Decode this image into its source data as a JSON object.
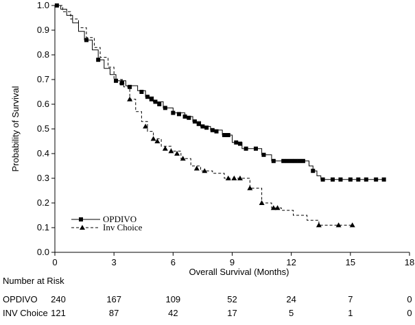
{
  "chart_data": {
    "type": "line",
    "subtype": "kaplan-meier",
    "title": "",
    "xlabel": "Overall Survival (Months)",
    "ylabel": "Probability of Survival",
    "xlim": [
      0,
      18
    ],
    "ylim": [
      0.0,
      1.0
    ],
    "x_ticks": [
      0,
      3,
      6,
      9,
      12,
      15,
      18
    ],
    "y_ticks": [
      0.0,
      0.1,
      0.2,
      0.3,
      0.4,
      0.5,
      0.6,
      0.7,
      0.8,
      0.9,
      1.0
    ],
    "x_tick_labels": [
      "0",
      "3",
      "6",
      "9",
      "12",
      "15",
      "18"
    ],
    "y_tick_labels": [
      "0.0",
      "0.1",
      "0.2",
      "0.3",
      "0.4",
      "0.5",
      "0.6",
      "0.7",
      "0.8",
      "0.9",
      "1.0"
    ],
    "grid": false,
    "legend_position": "bottom-left",
    "series": [
      {
        "name": "OPDIVO",
        "style": "solid",
        "marker": "square",
        "color": "#000000",
        "steps": [
          [
            0,
            1.0
          ],
          [
            0.3,
            0.985
          ],
          [
            0.6,
            0.96
          ],
          [
            0.9,
            0.93
          ],
          [
            1.2,
            0.895
          ],
          [
            1.5,
            0.86
          ],
          [
            1.9,
            0.82
          ],
          [
            2.2,
            0.78
          ],
          [
            2.5,
            0.745
          ],
          [
            2.8,
            0.72
          ],
          [
            3.1,
            0.695
          ],
          [
            3.6,
            0.675
          ],
          [
            4.2,
            0.655
          ],
          [
            4.6,
            0.63
          ],
          [
            5.0,
            0.61
          ],
          [
            5.5,
            0.585
          ],
          [
            6.0,
            0.565
          ],
          [
            6.6,
            0.55
          ],
          [
            7.0,
            0.53
          ],
          [
            7.4,
            0.51
          ],
          [
            7.9,
            0.495
          ],
          [
            8.5,
            0.475
          ],
          [
            9.0,
            0.445
          ],
          [
            9.5,
            0.42
          ],
          [
            10.5,
            0.395
          ],
          [
            11.0,
            0.37
          ],
          [
            12.9,
            0.35
          ],
          [
            13.1,
            0.33
          ],
          [
            13.3,
            0.31
          ],
          [
            13.5,
            0.295
          ],
          [
            16.7,
            0.295
          ]
        ],
        "censored": [
          [
            0.1,
            1.0
          ],
          [
            1.6,
            0.86
          ],
          [
            2.2,
            0.78
          ],
          [
            3.1,
            0.695
          ],
          [
            3.4,
            0.685
          ],
          [
            3.8,
            0.67
          ],
          [
            4.4,
            0.65
          ],
          [
            4.7,
            0.63
          ],
          [
            4.9,
            0.62
          ],
          [
            5.1,
            0.61
          ],
          [
            5.3,
            0.6
          ],
          [
            5.6,
            0.585
          ],
          [
            6.0,
            0.565
          ],
          [
            6.3,
            0.56
          ],
          [
            6.6,
            0.55
          ],
          [
            6.8,
            0.545
          ],
          [
            7.1,
            0.53
          ],
          [
            7.3,
            0.52
          ],
          [
            7.5,
            0.51
          ],
          [
            7.7,
            0.505
          ],
          [
            8.0,
            0.495
          ],
          [
            8.2,
            0.49
          ],
          [
            8.6,
            0.475
          ],
          [
            8.8,
            0.475
          ],
          [
            9.2,
            0.445
          ],
          [
            9.4,
            0.44
          ],
          [
            9.7,
            0.42
          ],
          [
            10.2,
            0.42
          ],
          [
            10.6,
            0.395
          ],
          [
            11.1,
            0.37
          ],
          [
            11.6,
            0.37
          ],
          [
            11.8,
            0.37
          ],
          [
            12.0,
            0.37
          ],
          [
            12.2,
            0.37
          ],
          [
            12.4,
            0.37
          ],
          [
            12.6,
            0.37
          ],
          [
            13.1,
            0.33
          ],
          [
            13.6,
            0.295
          ],
          [
            14.1,
            0.295
          ],
          [
            14.5,
            0.295
          ],
          [
            15.0,
            0.295
          ],
          [
            15.4,
            0.295
          ],
          [
            15.8,
            0.295
          ],
          [
            16.3,
            0.295
          ],
          [
            16.7,
            0.295
          ]
        ]
      },
      {
        "name": "Inv Choice",
        "style": "dashed",
        "marker": "triangle",
        "color": "#000000",
        "steps": [
          [
            0,
            1.0
          ],
          [
            0.4,
            0.975
          ],
          [
            0.8,
            0.945
          ],
          [
            1.2,
            0.91
          ],
          [
            1.6,
            0.87
          ],
          [
            2.0,
            0.83
          ],
          [
            2.3,
            0.79
          ],
          [
            2.7,
            0.75
          ],
          [
            3.0,
            0.7
          ],
          [
            3.5,
            0.67
          ],
          [
            3.8,
            0.62
          ],
          [
            4.1,
            0.57
          ],
          [
            4.4,
            0.53
          ],
          [
            4.7,
            0.49
          ],
          [
            5.0,
            0.46
          ],
          [
            5.4,
            0.43
          ],
          [
            5.9,
            0.41
          ],
          [
            6.4,
            0.38
          ],
          [
            6.9,
            0.35
          ],
          [
            7.4,
            0.33
          ],
          [
            8.0,
            0.32
          ],
          [
            8.6,
            0.3
          ],
          [
            9.9,
            0.26
          ],
          [
            10.5,
            0.2
          ],
          [
            11.0,
            0.18
          ],
          [
            11.5,
            0.17
          ],
          [
            12.1,
            0.15
          ],
          [
            12.8,
            0.13
          ],
          [
            13.4,
            0.11
          ],
          [
            15.1,
            0.11
          ]
        ],
        "censored": [
          [
            3.4,
            0.69
          ],
          [
            3.8,
            0.62
          ],
          [
            4.6,
            0.51
          ],
          [
            5.0,
            0.46
          ],
          [
            5.2,
            0.45
          ],
          [
            5.6,
            0.42
          ],
          [
            5.9,
            0.41
          ],
          [
            6.2,
            0.4
          ],
          [
            6.5,
            0.38
          ],
          [
            7.2,
            0.34
          ],
          [
            7.6,
            0.33
          ],
          [
            8.8,
            0.3
          ],
          [
            9.1,
            0.3
          ],
          [
            9.4,
            0.3
          ],
          [
            9.9,
            0.26
          ],
          [
            10.5,
            0.2
          ],
          [
            11.1,
            0.18
          ],
          [
            11.3,
            0.18
          ],
          [
            13.4,
            0.11
          ],
          [
            14.4,
            0.11
          ],
          [
            15.1,
            0.11
          ]
        ]
      }
    ],
    "risk_table": {
      "title": "Number at Risk",
      "times": [
        0,
        3,
        6,
        9,
        12,
        15,
        18
      ],
      "rows": [
        {
          "label": "OPDIVO",
          "values": [
            "240",
            "167",
            "109",
            "52",
            "24",
            "7",
            "0"
          ]
        },
        {
          "label": "INV Choice",
          "values": [
            "121",
            "87",
            "42",
            "17",
            "5",
            "1",
            "0"
          ]
        }
      ]
    }
  }
}
